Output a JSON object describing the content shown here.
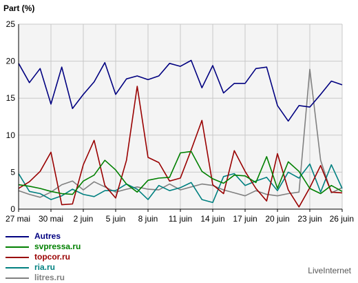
{
  "chart_data": {
    "type": "line",
    "ylabel": "Part (%)",
    "ylim": [
      0,
      25
    ],
    "yticks": [
      0,
      5,
      10,
      15,
      20,
      25
    ],
    "x_ticks": [
      "27 mai",
      "30 mai",
      "2 juin",
      "5 juin",
      "8 juin",
      "11 juin",
      "14 juin",
      "17 juin",
      "20 juin",
      "23 juin",
      "26 juin"
    ],
    "x_start": "27 mai",
    "x_end": "26 juin",
    "n_points": 31,
    "grid": true,
    "legend_position": "bottom-left",
    "series": [
      {
        "name": "Autres",
        "color": "#000080",
        "values": [
          19.7,
          17.1,
          19.0,
          14.2,
          19.2,
          13.6,
          15.5,
          17.2,
          19.8,
          15.5,
          17.6,
          18.0,
          17.5,
          18.0,
          19.7,
          19.3,
          20.1,
          16.4,
          19.4,
          15.7,
          17.0,
          17.0,
          19.0,
          19.2,
          14.0,
          11.9,
          14.0,
          13.8,
          15.5,
          17.3,
          16.8
        ]
      },
      {
        "name": "svpressa.ru",
        "color": "#008000",
        "values": [
          3.3,
          3.1,
          2.8,
          2.4,
          2.1,
          2.0,
          3.8,
          4.6,
          6.6,
          5.3,
          3.4,
          2.3,
          3.9,
          4.2,
          4.3,
          7.6,
          7.8,
          5.1,
          4.1,
          3.5,
          4.6,
          4.5,
          3.6,
          7.1,
          2.8,
          6.4,
          5.1,
          2.8,
          2.1,
          3.2,
          2.4
        ]
      },
      {
        "name": "topcor.ru",
        "color": "#990000",
        "values": [
          2.8,
          3.7,
          5.1,
          7.7,
          0.6,
          0.7,
          6.0,
          9.3,
          3.2,
          1.5,
          6.6,
          16.6,
          7.0,
          6.3,
          3.8,
          4.2,
          8.0,
          12.0,
          3.3,
          2.1,
          7.9,
          5.1,
          2.8,
          1.1,
          7.5,
          2.6,
          0.3,
          2.9,
          5.9,
          2.3,
          2.2
        ]
      },
      {
        "name": "ria.ru",
        "color": "#008080",
        "values": [
          4.8,
          2.4,
          2.1,
          1.3,
          1.8,
          2.7,
          2.0,
          1.7,
          2.5,
          2.5,
          3.4,
          2.7,
          1.3,
          3.2,
          2.5,
          2.9,
          3.6,
          1.3,
          0.9,
          4.4,
          4.8,
          3.2,
          3.8,
          4.3,
          2.5,
          5.0,
          4.2,
          6.1,
          2.3,
          6.0,
          2.8
        ]
      },
      {
        "name": "litres.ru",
        "color": "#808080",
        "values": [
          2.5,
          2.0,
          1.6,
          2.3,
          3.3,
          3.8,
          2.6,
          3.7,
          3.0,
          2.3,
          2.7,
          3.0,
          2.7,
          2.6,
          3.4,
          2.6,
          3.0,
          3.4,
          3.2,
          2.6,
          2.2,
          1.8,
          2.5,
          2.0,
          1.8,
          2.1,
          2.3,
          18.9,
          6.6,
          2.2,
          2.9
        ]
      }
    ]
  },
  "watermark": "LiveInternet"
}
